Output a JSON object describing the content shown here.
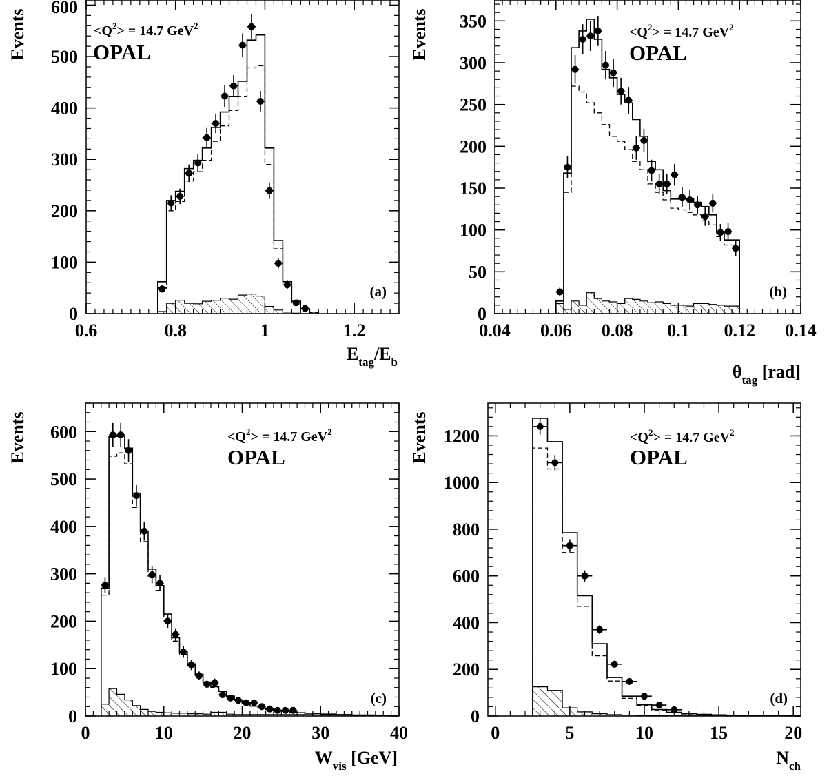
{
  "chart_data": [
    {
      "type": "histogram",
      "panel": "a",
      "panel_label": "(a)",
      "experiment": "OPAL",
      "q2_prefix": "<Q",
      "q2_sup": "2",
      "q2_mid": "> = 14.7 GeV",
      "q2_sup2": "2",
      "ylabel": "Events",
      "xlabel_main": "E",
      "xlabel_sub": "tag",
      "xlabel_rest": "/E",
      "xlabel_sub2": "b",
      "xlim": [
        0.6,
        1.3
      ],
      "ylim": [
        0,
        610
      ],
      "xticks": [
        0.6,
        0.8,
        1,
        1.2
      ],
      "xtick_labels": [
        "0.6",
        "0.8",
        "1",
        "1.2"
      ],
      "yticks": [
        0,
        100,
        200,
        300,
        400,
        500,
        600
      ],
      "ytick_labels": [
        "0",
        "100",
        "200",
        "300",
        "400",
        "500",
        "600"
      ],
      "x_minor_step": 0.02,
      "y_minor_step": 20,
      "edges": [
        0.76,
        0.78,
        0.8,
        0.82,
        0.84,
        0.86,
        0.88,
        0.9,
        0.92,
        0.94,
        0.96,
        0.98,
        1.0,
        1.02,
        1.04,
        1.06,
        1.08,
        1.1,
        1.12
      ],
      "mc_total": [
        62,
        220,
        238,
        282,
        298,
        322,
        362,
        392,
        422,
        452,
        532,
        542,
        322,
        142,
        62,
        24,
        9,
        3
      ],
      "mc_dashed": [
        50,
        200,
        218,
        258,
        276,
        298,
        335,
        365,
        395,
        422,
        478,
        482,
        290,
        126,
        56,
        21,
        8,
        2
      ],
      "background": [
        4,
        20,
        26,
        20,
        19,
        24,
        26,
        30,
        28,
        36,
        38,
        34,
        14,
        7,
        3,
        1,
        0,
        0
      ],
      "data_x": [
        0.77,
        0.79,
        0.81,
        0.83,
        0.85,
        0.87,
        0.89,
        0.91,
        0.93,
        0.95,
        0.97,
        0.99,
        1.01,
        1.03,
        1.05,
        1.07,
        1.09
      ],
      "data_y": [
        48,
        215,
        228,
        273,
        293,
        342,
        370,
        423,
        443,
        522,
        558,
        413,
        239,
        98,
        56,
        21,
        10
      ],
      "data_err": [
        7,
        15,
        15,
        17,
        17,
        19,
        19,
        21,
        21,
        23,
        24,
        20,
        16,
        10,
        8,
        5,
        3
      ]
    },
    {
      "type": "histogram",
      "panel": "b",
      "panel_label": "(b)",
      "experiment": "OPAL",
      "q2_prefix": "<Q",
      "q2_sup": "2",
      "q2_mid": "> = 14.7 GeV",
      "q2_sup2": "2",
      "ylabel": "Events",
      "xlabel_main": "θ",
      "xlabel_sub": "tag",
      "xlabel_rest": " [rad]",
      "xlabel_sub2": "",
      "xlim": [
        0.04,
        0.14
      ],
      "ylim": [
        0,
        375
      ],
      "xticks": [
        0.04,
        0.06,
        0.08,
        0.1,
        0.12,
        0.14
      ],
      "xtick_labels": [
        "0.04",
        "0.06",
        "0.08",
        "0.1",
        "0.12",
        "0.14"
      ],
      "yticks": [
        0,
        50,
        100,
        150,
        200,
        250,
        300,
        350
      ],
      "ytick_labels": [
        "0",
        "50",
        "100",
        "150",
        "200",
        "250",
        "300",
        "350"
      ],
      "x_minor_step": 0.0025,
      "y_minor_step": 10,
      "edges": [
        0.06,
        0.0625,
        0.065,
        0.0675,
        0.07,
        0.0725,
        0.075,
        0.0775,
        0.08,
        0.0825,
        0.085,
        0.0875,
        0.09,
        0.0925,
        0.095,
        0.0975,
        0.1,
        0.1025,
        0.105,
        0.1075,
        0.11,
        0.1125,
        0.115,
        0.1175,
        0.12
      ],
      "mc_total": [
        15,
        168,
        318,
        338,
        352,
        328,
        292,
        282,
        262,
        252,
        232,
        212,
        182,
        172,
        147,
        137,
        137,
        137,
        133,
        128,
        118,
        98,
        88,
        88
      ],
      "mc_dashed": [
        12,
        145,
        272,
        265,
        252,
        240,
        226,
        212,
        206,
        196,
        182,
        172,
        155,
        145,
        136,
        126,
        124,
        121,
        118,
        111,
        106,
        92,
        82,
        82
      ],
      "background": [
        12,
        5,
        15,
        10,
        25,
        18,
        15,
        14,
        12,
        18,
        17,
        15,
        13,
        14,
        12,
        10,
        10,
        9,
        12,
        12,
        11,
        10,
        9,
        9
      ],
      "data_x": [
        0.06125,
        0.06375,
        0.06625,
        0.06875,
        0.07125,
        0.07375,
        0.07625,
        0.07875,
        0.08125,
        0.08375,
        0.08625,
        0.08875,
        0.09125,
        0.09375,
        0.09625,
        0.09875,
        0.10125,
        0.10375,
        0.10625,
        0.10875,
        0.11125,
        0.11375,
        0.11625,
        0.11875
      ],
      "data_y": [
        26,
        175,
        292,
        328,
        332,
        338,
        297,
        288,
        266,
        255,
        198,
        207,
        171,
        155,
        155,
        166,
        139,
        136,
        130,
        116,
        132,
        97,
        98,
        78
      ],
      "data_err": [
        5,
        13,
        17,
        18,
        18,
        18,
        17,
        17,
        16,
        16,
        14,
        14,
        13,
        12,
        12,
        13,
        12,
        12,
        11,
        11,
        11,
        10,
        10,
        9
      ]
    },
    {
      "type": "histogram",
      "panel": "c",
      "panel_label": "(c)",
      "experiment": "OPAL",
      "q2_prefix": "<Q",
      "q2_sup": "2",
      "q2_mid": "> = 14.7 GeV",
      "q2_sup2": "2",
      "ylabel": "Events",
      "xlabel_main": "W",
      "xlabel_sub": "vis",
      "xlabel_rest": " [GeV]",
      "xlabel_sub2": "",
      "xlim": [
        0,
        40
      ],
      "ylim": [
        0,
        660
      ],
      "xticks": [
        0,
        10,
        20,
        30,
        40
      ],
      "xtick_labels": [
        "0",
        "10",
        "20",
        "30",
        "40"
      ],
      "yticks": [
        0,
        100,
        200,
        300,
        400,
        500,
        600
      ],
      "ytick_labels": [
        "0",
        "100",
        "200",
        "300",
        "400",
        "500",
        "600"
      ],
      "x_minor_step": 1,
      "y_minor_step": 20,
      "edges": [
        2,
        3,
        4,
        5,
        6,
        7,
        8,
        9,
        10,
        11,
        12,
        13,
        14,
        15,
        16,
        17,
        18,
        19,
        20,
        21,
        22,
        23,
        24,
        25,
        26,
        27,
        28,
        29,
        30,
        31,
        32,
        33,
        34,
        35,
        36,
        37,
        38,
        39,
        40
      ],
      "mc_total": [
        270,
        590,
        590,
        565,
        470,
        390,
        310,
        275,
        215,
        165,
        135,
        110,
        88,
        72,
        62,
        52,
        42,
        34,
        26,
        21,
        17,
        14,
        12,
        10,
        8,
        7,
        6,
        5,
        4,
        4,
        3,
        3,
        2,
        2,
        2,
        1,
        1,
        1
      ],
      "mc_dashed": [
        255,
        548,
        555,
        532,
        440,
        368,
        295,
        265,
        202,
        158,
        130,
        106,
        86,
        70,
        60,
        50,
        40,
        33,
        26,
        21,
        17,
        14,
        12,
        10,
        8,
        7,
        6,
        5,
        4,
        4,
        3,
        3,
        2,
        2,
        2,
        1,
        1,
        1
      ],
      "background": [
        25,
        58,
        46,
        34,
        22,
        14,
        10,
        8,
        7,
        6,
        6,
        5,
        5,
        4,
        8,
        8,
        4,
        3,
        3,
        3,
        3,
        3,
        3,
        3,
        3,
        3,
        3,
        2,
        2,
        2,
        2,
        2,
        2,
        1,
        1,
        1,
        1,
        1
      ],
      "data_x": [
        2.5,
        3.5,
        4.5,
        5.5,
        6.5,
        7.5,
        8.5,
        9.5,
        10.5,
        11.5,
        12.5,
        13.5,
        14.5,
        15.5,
        16.5,
        17.5,
        18.5,
        19.5,
        20.5,
        21.5,
        22.5,
        23.5,
        24.5,
        25.5,
        26.5
      ],
      "data_y": [
        276,
        593,
        593,
        560,
        465,
        390,
        298,
        280,
        200,
        172,
        135,
        108,
        85,
        67,
        70,
        45,
        38,
        33,
        28,
        28,
        20,
        15,
        12,
        12,
        12
      ],
      "data_err": [
        17,
        25,
        25,
        24,
        22,
        20,
        18,
        17,
        14,
        13,
        12,
        11,
        9,
        8,
        9,
        7,
        6,
        6,
        5,
        5,
        5,
        4,
        4,
        4,
        4
      ]
    },
    {
      "type": "histogram",
      "panel": "d",
      "panel_label": "(d)",
      "experiment": "OPAL",
      "q2_prefix": "<Q",
      "q2_sup": "2",
      "q2_mid": "> = 14.7 GeV",
      "q2_sup2": "2",
      "ylabel": "Events",
      "xlabel_main": "N",
      "xlabel_sub": "ch",
      "xlabel_rest": "",
      "xlabel_sub2": "",
      "xlim": [
        -0.5,
        20.5
      ],
      "ylim": [
        0,
        1340
      ],
      "xticks": [
        0,
        5,
        10,
        15,
        20
      ],
      "xtick_labels": [
        "0",
        "5",
        "10",
        "15",
        "20"
      ],
      "yticks": [
        0,
        200,
        400,
        600,
        800,
        1000,
        1200
      ],
      "ytick_labels": [
        "0",
        "200",
        "400",
        "600",
        "800",
        "1000",
        "1200"
      ],
      "x_minor_step": 1,
      "y_minor_step": 40,
      "edges": [
        2.5,
        3.5,
        4.5,
        5.5,
        6.5,
        7.5,
        8.5,
        9.5,
        10.5,
        11.5,
        12.5,
        13.5,
        14.5,
        15.5,
        16.5,
        17.5,
        18.5,
        19.5,
        20.5
      ],
      "mc_total": [
        1275,
        1175,
        785,
        515,
        310,
        165,
        85,
        48,
        28,
        16,
        10,
        7,
        5,
        3,
        2,
        1,
        1,
        1
      ],
      "mc_dashed": [
        1148,
        1058,
        700,
        470,
        258,
        150,
        76,
        44,
        26,
        15,
        9,
        6,
        4,
        3,
        2,
        1,
        1,
        1
      ],
      "background": [
        125,
        110,
        35,
        18,
        10,
        6,
        4,
        3,
        2,
        1,
        1,
        1,
        1,
        0,
        0,
        0,
        0,
        0
      ],
      "data_x": [
        3,
        4,
        5,
        6,
        7,
        8,
        9,
        10,
        11,
        12
      ],
      "data_y": [
        1240,
        1085,
        730,
        600,
        370,
        222,
        148,
        85,
        47,
        27
      ],
      "data_err": [
        35,
        33,
        27,
        24,
        19,
        15,
        12,
        9,
        7,
        5
      ]
    }
  ]
}
